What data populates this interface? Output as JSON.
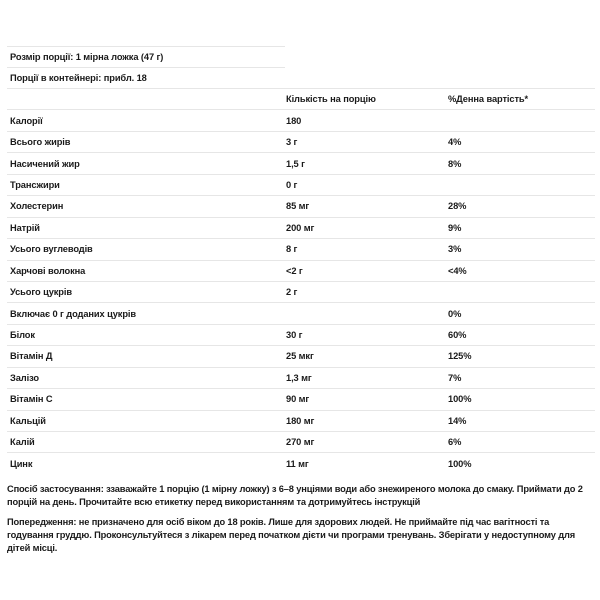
{
  "serving_size": "Розмір порції:  1 мірна ложка (47 г)",
  "servings_per_container": "Порції в контейнері:  прибл. 18",
  "table": {
    "headers": [
      "",
      "Кількість на порцію",
      "%Денна вартість*"
    ],
    "rows": [
      [
        "Калорії",
        "180",
        ""
      ],
      [
        "Всього жирів",
        "3 г",
        "4%"
      ],
      [
        "Насичений жир",
        "1,5 г",
        "8%"
      ],
      [
        "Трансжири",
        "0 г",
        ""
      ],
      [
        "Холестерин",
        "85 мг",
        "28%"
      ],
      [
        "Натрій",
        "200 мг",
        "9%"
      ],
      [
        "Усього вуглеводів",
        "8 г",
        "3%"
      ],
      [
        "Харчові волокна",
        "<2 г",
        "<4%"
      ],
      [
        "Усього цукрів",
        "2 г",
        ""
      ],
      [
        "Включає 0 г доданих цукрів",
        "",
        "0%"
      ],
      [
        "Білок",
        "30 г",
        "60%"
      ],
      [
        "Вітамін Д",
        "25 мкг",
        "125%"
      ],
      [
        "Залізо",
        "1,3 мг",
        "7%"
      ],
      [
        "Вітамін С",
        "90 мг",
        "100%"
      ],
      [
        "Кальцій",
        "180 мг",
        "14%"
      ],
      [
        "Калій",
        "270 мг",
        "6%"
      ],
      [
        "Цинк",
        "11 мг",
        "100%"
      ]
    ]
  },
  "directions": "Спосіб застосування: ззаважайте 1 порцію (1 мірну ложку) з 6–8 унціями води або знежиреного молока до смаку.    Приймати до 2 порцій на день. Прочитайте всю етикетку перед використанням та дотримуйтесь інструкцій",
  "warning": "Попередження: не призначено для осіб віком до 18 років. Лише для здорових людей. Не приймайте під час вагітності та годування груддю. Проконсультуйтеся з лікарем перед початком дієти чи програми тренувань. Зберігати у недоступному для дітей місці."
}
